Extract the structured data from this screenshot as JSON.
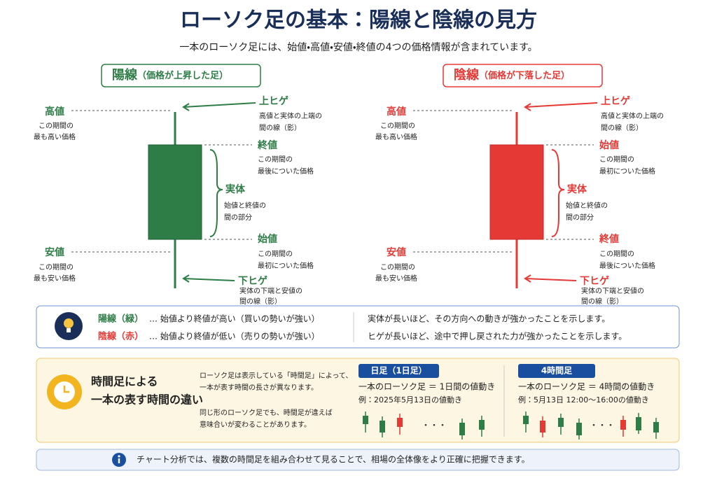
{
  "header": {
    "title": "ローソク足の基本：陽線と陰線の見方",
    "subtitle": "一本のローソク足には、始値・高値・安値・終値の4つの価格情報が含まれています。"
  },
  "bullish": {
    "heading": "陽線",
    "heading_note": "（価格が上昇した足）",
    "high": {
      "label": "高値",
      "lines": [
        "この期間の",
        "最も高い価格"
      ]
    },
    "upper_shadow": {
      "label": "上ヒゲ",
      "lines": [
        "高値と実体の上端の",
        "間の線（影）"
      ]
    },
    "body_top": {
      "label": "終値",
      "lines": [
        "この期間の",
        "最後についた価格"
      ]
    },
    "body": {
      "label": "実体",
      "lines": [
        "始値と終値の",
        "間の部分"
      ]
    },
    "body_bottom": {
      "label": "始値",
      "lines": [
        "この期間の",
        "最初についた価格"
      ]
    },
    "low": {
      "label": "安値",
      "lines": [
        "この期間の",
        "最も安い価格"
      ]
    },
    "lower_shadow": {
      "label": "下ヒゲ",
      "lines": [
        "実体の下端と安値の",
        "間の線（影）"
      ]
    }
  },
  "bearish": {
    "heading": "陰線",
    "heading_note": "（価格が下落した足）",
    "high": {
      "label": "高値",
      "lines": [
        "この期間の",
        "最も高い価格"
      ]
    },
    "upper_shadow": {
      "label": "上ヒゲ",
      "lines": [
        "高値と実体の上端の",
        "間の線（影）"
      ]
    },
    "body_top": {
      "label": "始値",
      "lines": [
        "この期間の",
        "最初についた価格"
      ]
    },
    "body": {
      "label": "実体",
      "lines": [
        "始値と終値の",
        "間の部分"
      ]
    },
    "body_bottom": {
      "label": "終値",
      "lines": [
        "この期間の",
        "最後についた価格"
      ]
    },
    "low": {
      "label": "安値",
      "lines": [
        "この期間の",
        "最も安い価格"
      ]
    },
    "lower_shadow": {
      "label": "下ヒゲ",
      "lines": [
        "実体の下端と安値の",
        "間の線（影）"
      ]
    }
  },
  "summary": {
    "legend": [
      {
        "label": "陽線（緑）",
        "text": "… 始値より終値が高い（買いの勢いが強い）"
      },
      {
        "label": "陰線（赤）",
        "text": "… 始値より終値が低い（売りの勢いが強い）"
      }
    ],
    "notes": [
      "実体が長いほど、その方向への動きが強かったことを示します。",
      "ヒゲが長いほど、途中で押し戻された力が強かったことを示します。"
    ]
  },
  "timeframe": {
    "title": [
      "時間足による",
      "一本の表す時間の違い"
    ],
    "description": [
      "ローソク足は表示している「時間足」によって、",
      "一本が表す時間の長さが異なります。",
      "同じ形のローソク足でも、時間足が違えば",
      "意味合いが変わることがあります。"
    ],
    "panels": [
      {
        "tag": "日足（1日足）",
        "line": "一本のローソク足 ＝ 1日間の値動き",
        "example": "例：2025年5月13日の値動き",
        "ellipsis": "・・・"
      },
      {
        "tag": "4時間足",
        "line": "一本のローソク足 ＝ 4時間の値動き",
        "example": "例：5月13日 12:00〜16:00の値動き",
        "ellipsis": "・・・"
      }
    ]
  },
  "footer": {
    "text": "チャート分析では、複数の時間足を組み合わせて見ることで、相場の全体像をより正確に把握できます。"
  }
}
